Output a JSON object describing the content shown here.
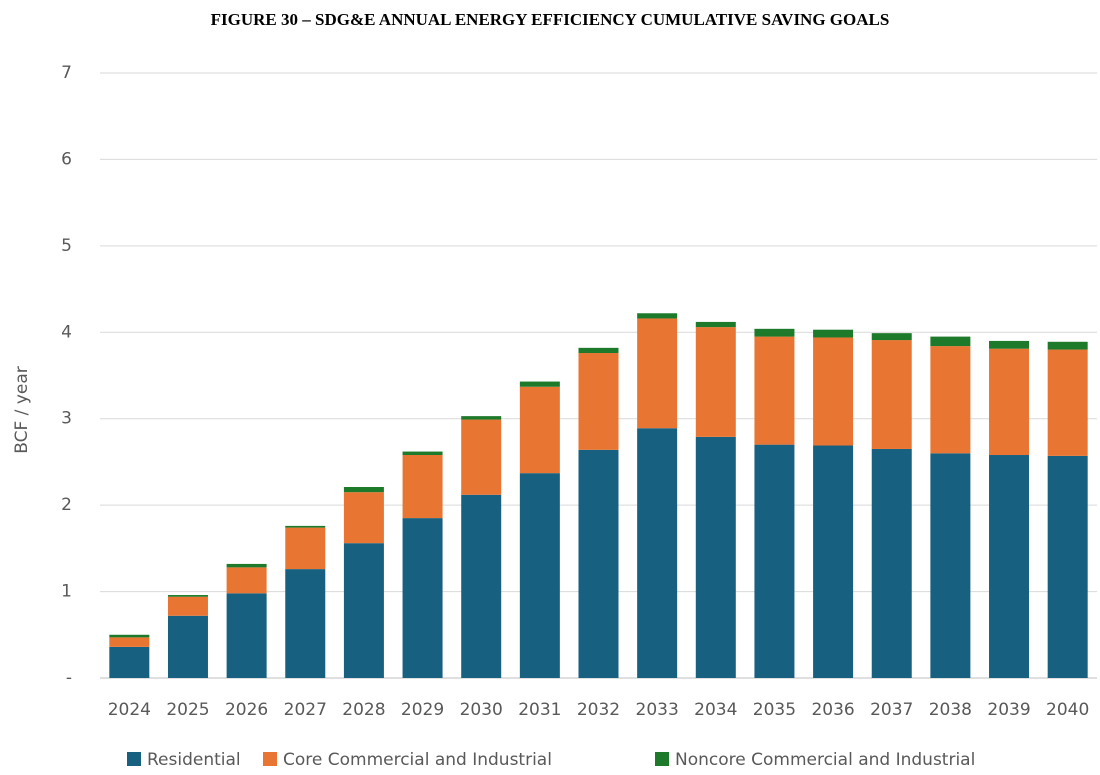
{
  "chart_data": {
    "type": "stacked_bar",
    "title": "FIGURE 30 – SDG&E ANNUAL ENERGY EFFICIENCY CUMULATIVE SAVING GOALS",
    "y_label": "BCF / year",
    "categories": [
      "2024",
      "2025",
      "2026",
      "2027",
      "2028",
      "2029",
      "2030",
      "2031",
      "2032",
      "2033",
      "2034",
      "2035",
      "2036",
      "2037",
      "2038",
      "2039",
      "2040"
    ],
    "series": [
      {
        "name": "Residential",
        "color": "#17607f",
        "values": [
          0.36,
          0.72,
          0.98,
          1.26,
          1.56,
          1.85,
          2.12,
          2.37,
          2.64,
          2.89,
          2.79,
          2.7,
          2.69,
          2.65,
          2.6,
          2.58,
          2.57
        ]
      },
      {
        "name": "Core Commercial and Industrial",
        "color": "#e97532",
        "values": [
          0.11,
          0.22,
          0.3,
          0.48,
          0.59,
          0.73,
          0.87,
          1.0,
          1.12,
          1.27,
          1.27,
          1.25,
          1.25,
          1.26,
          1.24,
          1.23,
          1.23
        ]
      },
      {
        "name": "Noncore Commercial and Industrial",
        "color": "#1e7a2b",
        "values": [
          0.03,
          0.02,
          0.04,
          0.02,
          0.06,
          0.04,
          0.04,
          0.06,
          0.06,
          0.06,
          0.06,
          0.09,
          0.09,
          0.08,
          0.11,
          0.09,
          0.09
        ]
      }
    ],
    "ylim": [
      0,
      7
    ],
    "yticks": [
      {
        "value": 0,
        "label": "-"
      },
      1,
      2,
      3,
      4,
      5,
      6,
      7
    ],
    "grid": true,
    "legend": "bottom"
  }
}
